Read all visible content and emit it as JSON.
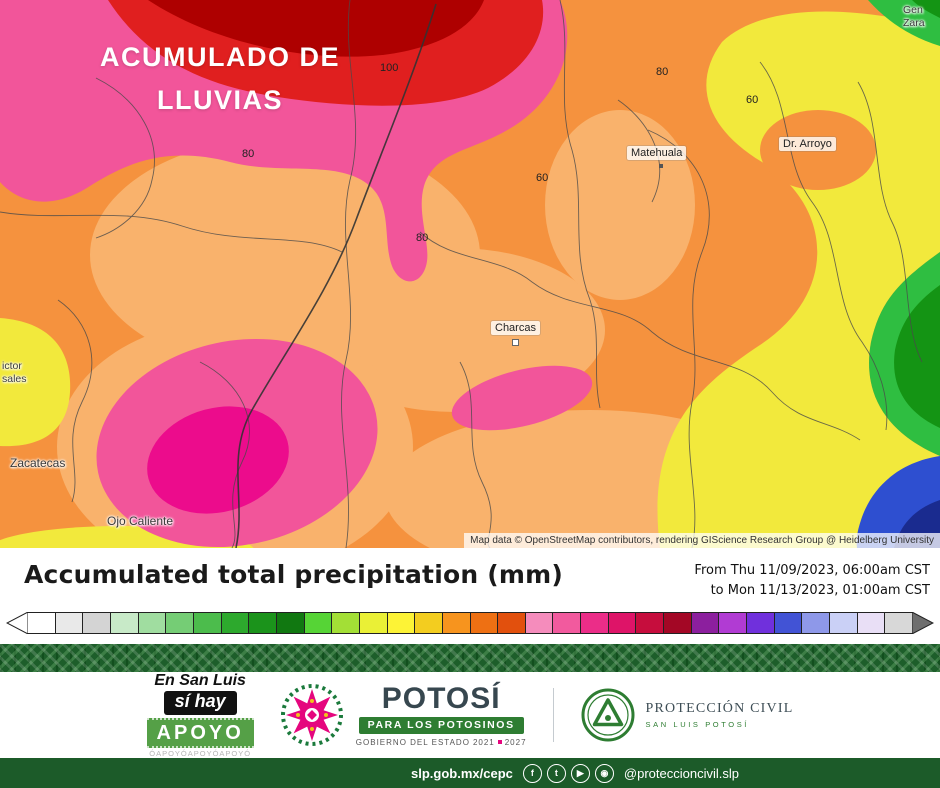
{
  "map": {
    "title": {
      "line1": "ACUMULADO DE",
      "line2": "LLUVIAS"
    },
    "labels": {
      "matehuala": "Matehuala",
      "dr_arroyo": "Dr. Arroyo",
      "charcas": "Charcas",
      "zacatecas": "Zacatecas",
      "ojo_caliente": "Ojo Caliente",
      "victor_line1": "ictor",
      "victor_line2": "sales",
      "gen_line1": "Gen",
      "gen_line2": "Zara"
    },
    "contours": [
      "100",
      "80",
      "80",
      "60",
      "80",
      "60"
    ],
    "attribution": "Map data © OpenStreetMap contributors, rendering GIScience Research Group @ Heidelberg University",
    "palette": {
      "orange": "#F5923E",
      "light_orange": "#F9B26C",
      "pink": "#F2559A",
      "magenta": "#EC0C8C",
      "red": "#E01F1F",
      "dark_red": "#AE0000",
      "yellow": "#F2E93C",
      "green": "#2FBE41",
      "dark_green": "#149414",
      "blue": "#2E4FD0",
      "navy": "#1A2B8F"
    }
  },
  "legend": {
    "title": "Accumulated total precipitation (mm)",
    "date_from": "From Thu 11/09/2023, 06:00am CST",
    "date_to": "to Mon 11/13/2023, 01:00am CST",
    "colors": [
      "#ffffff",
      "#e9e9e9",
      "#d4d4d4",
      "#c8eac8",
      "#a0dda0",
      "#75cd75",
      "#4cbc4c",
      "#2da92d",
      "#1b931b",
      "#117811",
      "#56d436",
      "#a3df36",
      "#eaf036",
      "#fdf336",
      "#f3cd1f",
      "#f7941e",
      "#ee7013",
      "#e2500d",
      "#f58cbc",
      "#f25a9e",
      "#eb2d88",
      "#de1468",
      "#c60d3d",
      "#a30725",
      "#8c1f9e",
      "#b13bd3",
      "#7030dc",
      "#4253d5",
      "#8e98e9",
      "#cad0f6",
      "#e9dff6",
      "#d8d8d8"
    ]
  },
  "footer": {
    "apoyo": {
      "line1": "En San Luis",
      "line2": "sí hay",
      "line3": "APOYO",
      "watermark": "ÓAPOYÓAPOYÓAPOYÓ"
    },
    "potosi": {
      "name": "POTOSÍ",
      "tagline": "PARA LOS POTOSINOS",
      "gobierno": "GOBIERNO DEL ESTADO",
      "year_from": "2021",
      "year_to": "2027"
    },
    "proteccion": {
      "name": "PROTECCIÓN CIVIL",
      "subtitle": "SAN LUIS POTOSÍ"
    }
  },
  "bottom_bar": {
    "url": "slp.gob.mx/cepc",
    "handle": "@proteccioncivil.slp",
    "icons": [
      {
        "name": "facebook",
        "glyph": "f"
      },
      {
        "name": "twitter",
        "glyph": "t"
      },
      {
        "name": "youtube",
        "glyph": "▶"
      },
      {
        "name": "instagram",
        "glyph": "◉"
      }
    ]
  }
}
